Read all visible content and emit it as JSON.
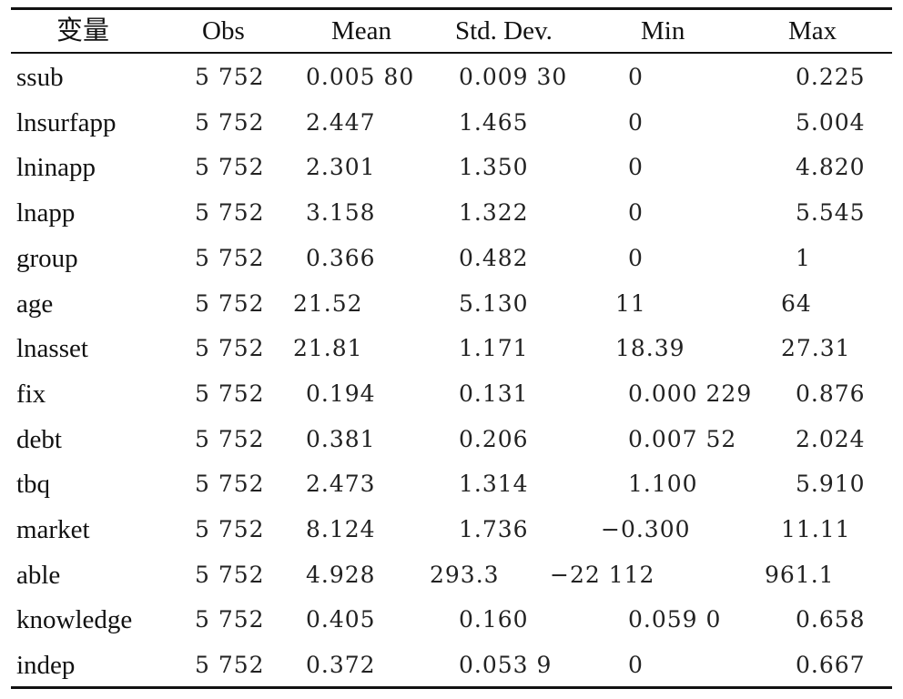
{
  "table": {
    "headers": [
      "变量",
      "Obs",
      "Mean",
      "Std. Dev.",
      "Min",
      "Max"
    ],
    "rows": [
      {
        "variable": "ssub",
        "obs": "5 752",
        "mean": "0.005 80",
        "sd": "0.009 30",
        "min": "0",
        "max": "0.225"
      },
      {
        "variable": "lnsurfapp",
        "obs": "5 752",
        "mean": "2.447",
        "sd": "1.465",
        "min": "0",
        "max": "5.004"
      },
      {
        "variable": "lninapp",
        "obs": "5 752",
        "mean": "2.301",
        "sd": "1.350",
        "min": "0",
        "max": "4.820"
      },
      {
        "variable": "lnapp",
        "obs": "5 752",
        "mean": "3.158",
        "sd": "1.322",
        "min": "0",
        "max": "5.545"
      },
      {
        "variable": "group",
        "obs": "5 752",
        "mean": "0.366",
        "sd": "0.482",
        "min": "0",
        "max": "1"
      },
      {
        "variable": "age",
        "obs": "5 752",
        "mean": "21.52",
        "sd": "5.130",
        "min": "11",
        "max": "64"
      },
      {
        "variable": "lnasset",
        "obs": "5 752",
        "mean": "21.81",
        "sd": "1.171",
        "min": "18.39",
        "max": "27.31"
      },
      {
        "variable": "fix",
        "obs": "5 752",
        "mean": "0.194",
        "sd": "0.131",
        "min": "0.000 229",
        "max": "0.876"
      },
      {
        "variable": "debt",
        "obs": "5 752",
        "mean": "0.381",
        "sd": "0.206",
        "min": "0.007 52",
        "max": "2.024"
      },
      {
        "variable": "tbq",
        "obs": "5 752",
        "mean": "2.473",
        "sd": "1.314",
        "min": "1.100",
        "max": "5.910"
      },
      {
        "variable": "market",
        "obs": "5 752",
        "mean": "8.124",
        "sd": "1.736",
        "min": "−0.300",
        "max": "11.11"
      },
      {
        "variable": "able",
        "obs": "5 752",
        "mean": "4.928",
        "sd": "293.3",
        "min": "−22 112",
        "max": "961.1"
      },
      {
        "variable": "knowledge",
        "obs": "5 752",
        "mean": "0.405",
        "sd": "0.160",
        "min": "0.059 0",
        "max": "0.658"
      },
      {
        "variable": "indep",
        "obs": "5 752",
        "mean": "0.372",
        "sd": "0.053 9",
        "min": "0",
        "max": "0.667"
      }
    ]
  }
}
